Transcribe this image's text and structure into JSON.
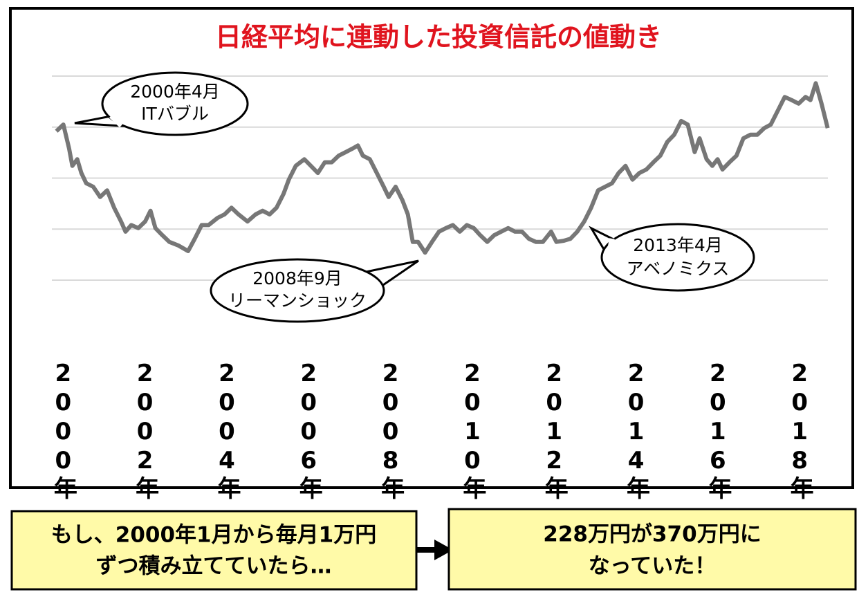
{
  "chart_data": {
    "type": "line",
    "title": "日経平均に連動した投資信託の値動き",
    "title_color": "#e0141e",
    "series": [
      {
        "color": "#777777",
        "x": [
          1999.86,
          2000.03,
          2000.17,
          2000.25,
          2000.37,
          2000.47,
          2000.59,
          2000.76,
          2000.93,
          2001.1,
          2001.27,
          2001.44,
          2001.55,
          2001.69,
          2001.86,
          2002.03,
          2002.16,
          2002.28,
          2002.45,
          2002.62,
          2002.84,
          2003.08,
          2003.24,
          2003.41,
          2003.58,
          2003.8,
          2003.97,
          2004.14,
          2004.31,
          2004.53,
          2004.73,
          2004.9,
          2005.07,
          2005.24,
          2005.41,
          2005.54,
          2005.71,
          2005.92,
          2006.08,
          2006.25,
          2006.42,
          2006.59,
          2006.76,
          2006.93,
          2007.1,
          2007.23,
          2007.35,
          2007.52,
          2007.69,
          2007.86,
          2007.98,
          2008.15,
          2008.32,
          2008.45,
          2008.57,
          2008.7,
          2008.87,
          2009.04,
          2009.21,
          2009.38,
          2009.55,
          2009.72,
          2009.89,
          2010.06,
          2010.22,
          2010.39,
          2010.56,
          2010.73,
          2010.9,
          2011.07,
          2011.24,
          2011.41,
          2011.58,
          2011.75,
          2011.95,
          2012.08,
          2012.25,
          2012.42,
          2012.59,
          2012.76,
          2012.93,
          2013.1,
          2013.27,
          2013.44,
          2013.6,
          2013.77,
          2013.94,
          2014.11,
          2014.28,
          2014.45,
          2014.62,
          2014.79,
          2014.96,
          2015.13,
          2015.29,
          2015.46,
          2015.58,
          2015.75,
          2015.89,
          2016.02,
          2016.14,
          2016.31,
          2016.48,
          2016.65,
          2016.82,
          2016.99,
          2017.16,
          2017.32,
          2017.49,
          2017.66,
          2017.83,
          2018.0,
          2018.17,
          2018.29,
          2018.42,
          2018.56,
          2018.71
        ],
        "values": [
          2.92,
          3.05,
          2.58,
          2.24,
          2.37,
          2.1,
          1.9,
          1.83,
          1.63,
          1.76,
          1.42,
          1.15,
          0.95,
          1.08,
          1.02,
          1.15,
          1.36,
          1.02,
          0.88,
          0.75,
          0.68,
          0.57,
          0.81,
          1.08,
          1.08,
          1.22,
          1.29,
          1.42,
          1.29,
          1.15,
          1.29,
          1.36,
          1.29,
          1.42,
          1.69,
          1.97,
          2.24,
          2.37,
          2.24,
          2.1,
          2.31,
          2.31,
          2.44,
          2.51,
          2.58,
          2.64,
          2.44,
          2.37,
          2.1,
          1.83,
          1.63,
          1.83,
          1.56,
          1.29,
          0.75,
          0.75,
          0.54,
          0.75,
          0.95,
          1.02,
          1.08,
          0.95,
          1.08,
          1.02,
          0.88,
          0.75,
          0.88,
          0.95,
          1.02,
          0.95,
          0.95,
          0.81,
          0.75,
          0.75,
          0.95,
          0.75,
          0.77,
          0.81,
          0.95,
          1.15,
          1.42,
          1.76,
          1.83,
          1.9,
          2.1,
          2.24,
          1.97,
          2.1,
          2.17,
          2.31,
          2.44,
          2.71,
          2.85,
          3.12,
          3.05,
          2.51,
          2.78,
          2.37,
          2.24,
          2.37,
          2.17,
          2.31,
          2.44,
          2.78,
          2.85,
          2.85,
          2.98,
          3.05,
          3.32,
          3.59,
          3.53,
          3.46,
          3.59,
          3.53,
          3.86,
          3.46,
          2.98
        ]
      }
    ],
    "xlim": [
      1999.8,
      2018.8
    ],
    "xticks": [
      {
        "value": 2000,
        "label": "2000年"
      },
      {
        "value": 2002,
        "label": "2002年"
      },
      {
        "value": 2004,
        "label": "2004年"
      },
      {
        "value": 2006,
        "label": "2006年"
      },
      {
        "value": 2008,
        "label": "2008年"
      },
      {
        "value": 2010,
        "label": "2010年"
      },
      {
        "value": 2012,
        "label": "2012年"
      },
      {
        "value": 2014,
        "label": "2014年"
      },
      {
        "value": 2016,
        "label": "2016年"
      },
      {
        "value": 2018,
        "label": "2018年"
      }
    ],
    "ylim": [
      0,
      4
    ],
    "yticks": [
      0,
      1,
      2,
      3,
      4
    ],
    "grid": true,
    "ytick_labels": false,
    "annotations": [
      [
        "2000年4月",
        "ITバブル"
      ],
      [
        "2008年9月",
        "リーマンショック"
      ],
      [
        "2013年4月",
        "アベノミクス"
      ]
    ]
  },
  "notes": [
    [
      "もし、2000年1月から毎月1万円",
      "ずつ積み立てていたら…"
    ],
    [
      "228万円が370万円に",
      "なっていた！"
    ]
  ]
}
